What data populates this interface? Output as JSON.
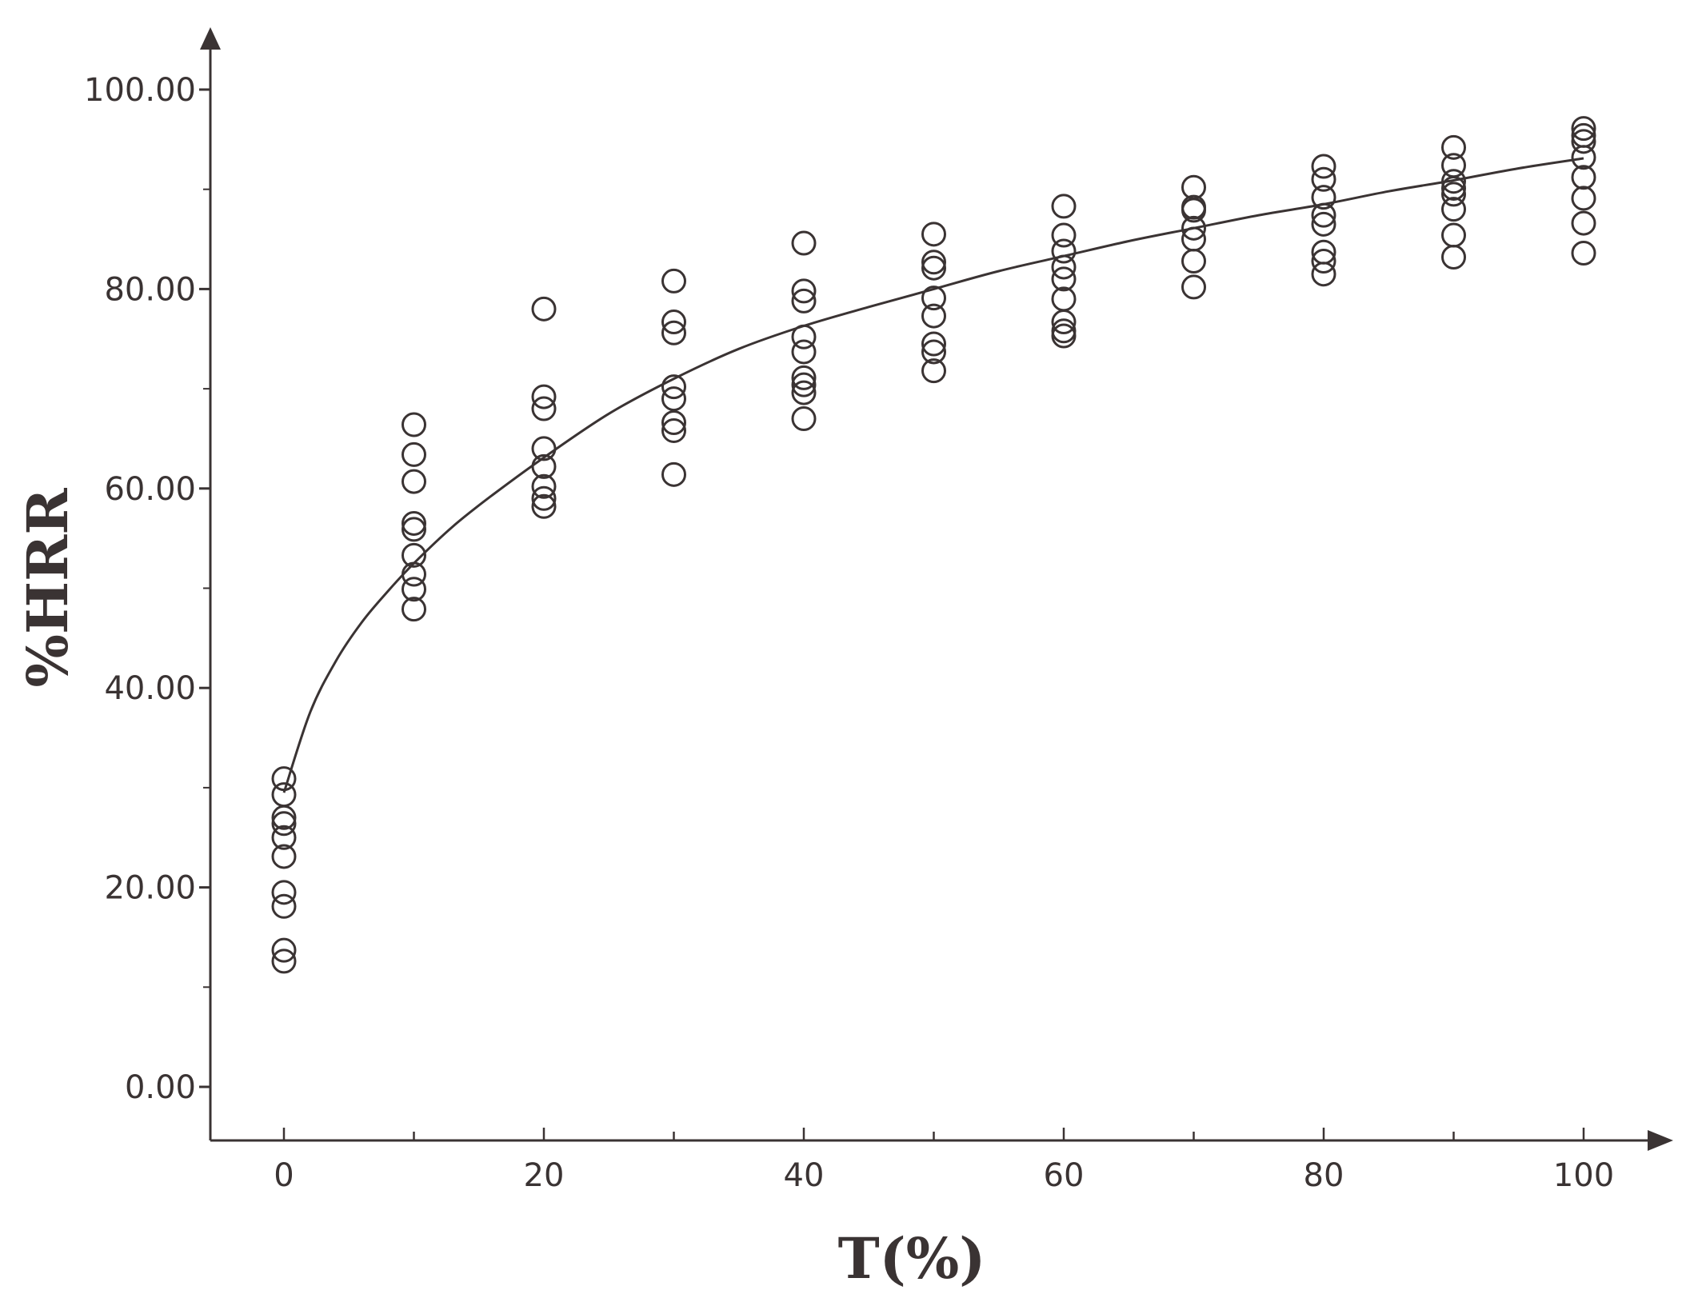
{
  "chart_data": {
    "type": "scatter",
    "xlabel": "T(%)",
    "ylabel": "%HRR",
    "xlim": [
      -5.8,
      105
    ],
    "ylim": [
      -5,
      104
    ],
    "x_ticks": [
      0,
      20,
      40,
      60,
      80,
      100
    ],
    "x_tick_labels": [
      "0",
      "20",
      "40",
      "60",
      "80",
      "100"
    ],
    "y_ticks": [
      0,
      20,
      40,
      60,
      80,
      100
    ],
    "y_tick_labels": [
      "0.00",
      "20.00",
      "40.00",
      "60.00",
      "80.00",
      "100.00"
    ],
    "grid": false,
    "legend": "none",
    "series": [
      {
        "marker": "open-circle",
        "points": [
          [
            0,
            30.9
          ],
          [
            0,
            29.3
          ],
          [
            0,
            27
          ],
          [
            0,
            26.4
          ],
          [
            0,
            25
          ],
          [
            0,
            23.1
          ],
          [
            0,
            19.5
          ],
          [
            0,
            18.1
          ],
          [
            0,
            13.7
          ],
          [
            0,
            12.6
          ],
          [
            10,
            66.4
          ],
          [
            10,
            63.4
          ],
          [
            10,
            60.7
          ],
          [
            10,
            56.5
          ],
          [
            10,
            55.9
          ],
          [
            10,
            53.3
          ],
          [
            10,
            51.4
          ],
          [
            10,
            49.9
          ],
          [
            10,
            47.9
          ],
          [
            20,
            78
          ],
          [
            20,
            69.2
          ],
          [
            20,
            68
          ],
          [
            20,
            64
          ],
          [
            20,
            62.2
          ],
          [
            20,
            60.2
          ],
          [
            20,
            59
          ],
          [
            20,
            58.2
          ],
          [
            30,
            80.8
          ],
          [
            30,
            76.7
          ],
          [
            30,
            75.6
          ],
          [
            30,
            70.2
          ],
          [
            30,
            69
          ],
          [
            30,
            66.6
          ],
          [
            30,
            65.8
          ],
          [
            30,
            61.4
          ],
          [
            40,
            84.6
          ],
          [
            40,
            79.8
          ],
          [
            40,
            78.8
          ],
          [
            40,
            75.2
          ],
          [
            40,
            73.7
          ],
          [
            40,
            71.1
          ],
          [
            40,
            70.4
          ],
          [
            40,
            69.6
          ],
          [
            40,
            67
          ],
          [
            50,
            85.5
          ],
          [
            50,
            82.7
          ],
          [
            50,
            82.1
          ],
          [
            50,
            79.1
          ],
          [
            50,
            77.3
          ],
          [
            50,
            74.5
          ],
          [
            50,
            73.7
          ],
          [
            50,
            71.8
          ],
          [
            60,
            88.3
          ],
          [
            60,
            85.4
          ],
          [
            60,
            83.8
          ],
          [
            60,
            82.2
          ],
          [
            60,
            81
          ],
          [
            60,
            79
          ],
          [
            60,
            76.7
          ],
          [
            60,
            75.8
          ],
          [
            60,
            75.3
          ],
          [
            70,
            90.2
          ],
          [
            70,
            88.2
          ],
          [
            70,
            87.9
          ],
          [
            70,
            86.1
          ],
          [
            70,
            85
          ],
          [
            70,
            82.8
          ],
          [
            70,
            80.2
          ],
          [
            80,
            92.3
          ],
          [
            80,
            91
          ],
          [
            80,
            89.2
          ],
          [
            80,
            87.4
          ],
          [
            80,
            86.5
          ],
          [
            80,
            83.7
          ],
          [
            80,
            82.8
          ],
          [
            80,
            81.5
          ],
          [
            90,
            94.2
          ],
          [
            90,
            92.4
          ],
          [
            90,
            90.8
          ],
          [
            90,
            90.1
          ],
          [
            90,
            89.5
          ],
          [
            90,
            88
          ],
          [
            90,
            85.4
          ],
          [
            90,
            83.2
          ],
          [
            100,
            96.1
          ],
          [
            100,
            95.4
          ],
          [
            100,
            94.8
          ],
          [
            100,
            93.2
          ],
          [
            100,
            91.2
          ],
          [
            100,
            89.1
          ],
          [
            100,
            86.6
          ],
          [
            100,
            83.6
          ]
        ]
      }
    ],
    "fit_curve": {
      "style": "smooth-line",
      "points": [
        [
          0,
          29.5
        ],
        [
          2,
          37.5
        ],
        [
          4,
          42.7
        ],
        [
          6,
          46.6
        ],
        [
          8,
          49.7
        ],
        [
          10,
          52.5
        ],
        [
          13,
          56.2
        ],
        [
          16,
          59.3
        ],
        [
          20,
          63.1
        ],
        [
          25,
          67.5
        ],
        [
          30,
          71
        ],
        [
          35,
          74
        ],
        [
          40,
          76.3
        ],
        [
          45,
          78.2
        ],
        [
          50,
          80
        ],
        [
          55,
          81.8
        ],
        [
          60,
          83.3
        ],
        [
          65,
          84.8
        ],
        [
          70,
          86.1
        ],
        [
          75,
          87.4
        ],
        [
          80,
          88.5
        ],
        [
          85,
          89.8
        ],
        [
          90,
          90.9
        ],
        [
          95,
          92.1
        ],
        [
          100,
          93.1
        ]
      ]
    }
  },
  "colors": {
    "axis": "#3a3333",
    "marker_stroke": "#3a3333",
    "marker_fill": "#ffffff",
    "curve": "#3a3333",
    "text": "#3a3333"
  }
}
